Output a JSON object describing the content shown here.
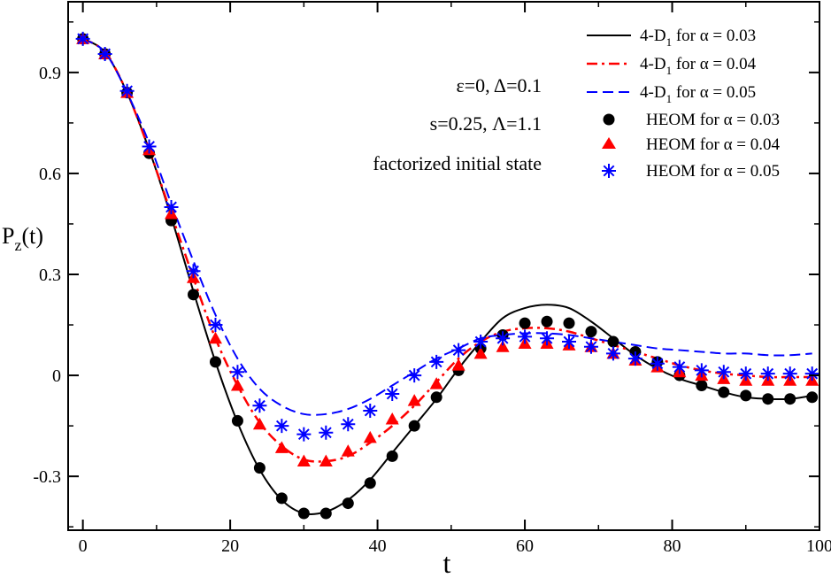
{
  "chart_data": {
    "type": "line",
    "xlabel": "t",
    "ylabel": "P",
    "ylabel_sub": "z",
    "ylabel_suffix": "(t)",
    "xlim": [
      -2,
      100
    ],
    "ylim": [
      -0.46,
      1.11
    ],
    "xticks": [
      0,
      20,
      40,
      60,
      80,
      100
    ],
    "xtick_labels": [
      "0",
      "20",
      "40",
      "60",
      "80",
      "100"
    ],
    "yticks": [
      -0.3,
      0,
      0.3,
      0.6,
      0.9
    ],
    "ytick_labels": [
      "-0.3",
      "0",
      "0.3",
      "0.6",
      "0.9"
    ],
    "annotations": [
      "ε=0,  Δ=0.1",
      "s=0.25,  Λ=1.1",
      "factorized initial state"
    ],
    "colors": {
      "black": "#000000",
      "red": "#ff0000",
      "blue": "#0000ff"
    },
    "series": [
      {
        "name": "4-D1 for α = 0.03",
        "legend_main": "4-D",
        "legend_sub": "1",
        "legend_rest": " for α = 0.03",
        "kind": "line",
        "dash": "solid",
        "color": "#000000",
        "x": [
          0,
          3,
          6,
          9,
          12,
          15,
          18,
          21,
          24,
          27,
          30,
          33,
          36,
          39,
          42,
          45,
          48,
          51,
          54,
          57,
          60,
          63,
          66,
          69,
          72,
          75,
          78,
          81,
          84,
          87,
          90,
          93,
          96,
          99
        ],
        "y": [
          1.0,
          0.96,
          0.84,
          0.67,
          0.47,
          0.25,
          0.04,
          -0.14,
          -0.28,
          -0.37,
          -0.41,
          -0.405,
          -0.37,
          -0.31,
          -0.23,
          -0.15,
          -0.07,
          0.02,
          0.1,
          0.17,
          0.2,
          0.21,
          0.2,
          0.16,
          0.11,
          0.06,
          0.02,
          -0.01,
          -0.03,
          -0.05,
          -0.065,
          -0.07,
          -0.07,
          -0.06
        ]
      },
      {
        "name": "4-D1 for α = 0.04",
        "legend_main": "4-D",
        "legend_sub": "1",
        "legend_rest": " for α = 0.04",
        "kind": "line",
        "dash": "dashdot",
        "color": "#ff0000",
        "x": [
          0,
          3,
          6,
          9,
          12,
          15,
          18,
          21,
          24,
          27,
          30,
          33,
          36,
          39,
          42,
          45,
          48,
          51,
          54,
          57,
          60,
          63,
          66,
          69,
          72,
          75,
          78,
          81,
          84,
          87,
          90,
          93,
          96,
          99
        ],
        "y": [
          1.0,
          0.96,
          0.84,
          0.67,
          0.48,
          0.29,
          0.11,
          -0.03,
          -0.14,
          -0.21,
          -0.25,
          -0.255,
          -0.24,
          -0.2,
          -0.15,
          -0.09,
          -0.02,
          0.05,
          0.1,
          0.13,
          0.14,
          0.14,
          0.13,
          0.11,
          0.09,
          0.07,
          0.05,
          0.03,
          0.015,
          0.005,
          0.0,
          -0.005,
          -0.005,
          -0.005
        ]
      },
      {
        "name": "4-D1 for α = 0.05",
        "legend_main": "4-D",
        "legend_sub": "1",
        "legend_rest": " for α = 0.05",
        "kind": "line",
        "dash": "dashed",
        "color": "#0000ff",
        "x": [
          0,
          3,
          6,
          9,
          12,
          15,
          18,
          21,
          24,
          27,
          30,
          33,
          36,
          39,
          42,
          45,
          48,
          51,
          54,
          57,
          60,
          63,
          66,
          69,
          72,
          75,
          78,
          81,
          84,
          87,
          90,
          93,
          96,
          99
        ],
        "y": [
          1.0,
          0.96,
          0.84,
          0.69,
          0.51,
          0.34,
          0.18,
          0.05,
          -0.04,
          -0.09,
          -0.115,
          -0.115,
          -0.1,
          -0.07,
          -0.03,
          0.01,
          0.05,
          0.08,
          0.11,
          0.12,
          0.125,
          0.125,
          0.12,
          0.11,
          0.1,
          0.09,
          0.08,
          0.075,
          0.07,
          0.065,
          0.065,
          0.06,
          0.06,
          0.065
        ]
      },
      {
        "name": "HEOM for α = 0.03",
        "legend_main": "HEOM for α = 0.03",
        "kind": "marker",
        "marker": "circle",
        "color": "#000000",
        "x": [
          0,
          3,
          6,
          9,
          12,
          15,
          18,
          21,
          24,
          27,
          30,
          33,
          36,
          39,
          42,
          45,
          48,
          51,
          54,
          57,
          60,
          63,
          66,
          69,
          72,
          75,
          78,
          81,
          84,
          87,
          90,
          93,
          96,
          99
        ],
        "y": [
          1.0,
          0.955,
          0.84,
          0.66,
          0.46,
          0.24,
          0.04,
          -0.135,
          -0.275,
          -0.365,
          -0.41,
          -0.41,
          -0.38,
          -0.32,
          -0.24,
          -0.15,
          -0.065,
          0.015,
          0.08,
          0.12,
          0.155,
          0.16,
          0.155,
          0.13,
          0.1,
          0.07,
          0.04,
          0.0,
          -0.03,
          -0.05,
          -0.06,
          -0.07,
          -0.07,
          -0.065
        ]
      },
      {
        "name": "HEOM for α = 0.04",
        "legend_main": "HEOM for α = 0.04",
        "kind": "marker",
        "marker": "triangle",
        "color": "#ff0000",
        "x": [
          0,
          3,
          6,
          9,
          12,
          15,
          18,
          21,
          24,
          27,
          30,
          33,
          36,
          39,
          42,
          45,
          48,
          51,
          54,
          57,
          60,
          63,
          66,
          69,
          72,
          75,
          78,
          81,
          84,
          87,
          90,
          93,
          96,
          99
        ],
        "y": [
          1.0,
          0.955,
          0.84,
          0.67,
          0.48,
          0.29,
          0.11,
          -0.03,
          -0.145,
          -0.215,
          -0.255,
          -0.255,
          -0.225,
          -0.185,
          -0.13,
          -0.075,
          -0.025,
          0.03,
          0.065,
          0.085,
          0.095,
          0.095,
          0.09,
          0.085,
          0.065,
          0.045,
          0.025,
          0.01,
          0.0,
          -0.01,
          -0.015,
          -0.015,
          -0.015,
          -0.015
        ]
      },
      {
        "name": "HEOM for α = 0.05",
        "legend_main": "HEOM for α = 0.05",
        "kind": "marker",
        "marker": "star",
        "color": "#0000ff",
        "x": [
          0,
          3,
          6,
          9,
          12,
          15,
          18,
          21,
          24,
          27,
          30,
          33,
          36,
          39,
          42,
          45,
          48,
          51,
          54,
          57,
          60,
          63,
          66,
          69,
          72,
          75,
          78,
          81,
          84,
          87,
          90,
          93,
          96,
          99
        ],
        "y": [
          1.0,
          0.955,
          0.845,
          0.68,
          0.5,
          0.31,
          0.15,
          0.01,
          -0.09,
          -0.15,
          -0.175,
          -0.17,
          -0.145,
          -0.105,
          -0.055,
          0.0,
          0.04,
          0.075,
          0.1,
          0.11,
          0.115,
          0.11,
          0.1,
          0.085,
          0.065,
          0.05,
          0.035,
          0.025,
          0.015,
          0.01,
          0.005,
          0.005,
          0.005,
          0.005
        ]
      }
    ]
  }
}
